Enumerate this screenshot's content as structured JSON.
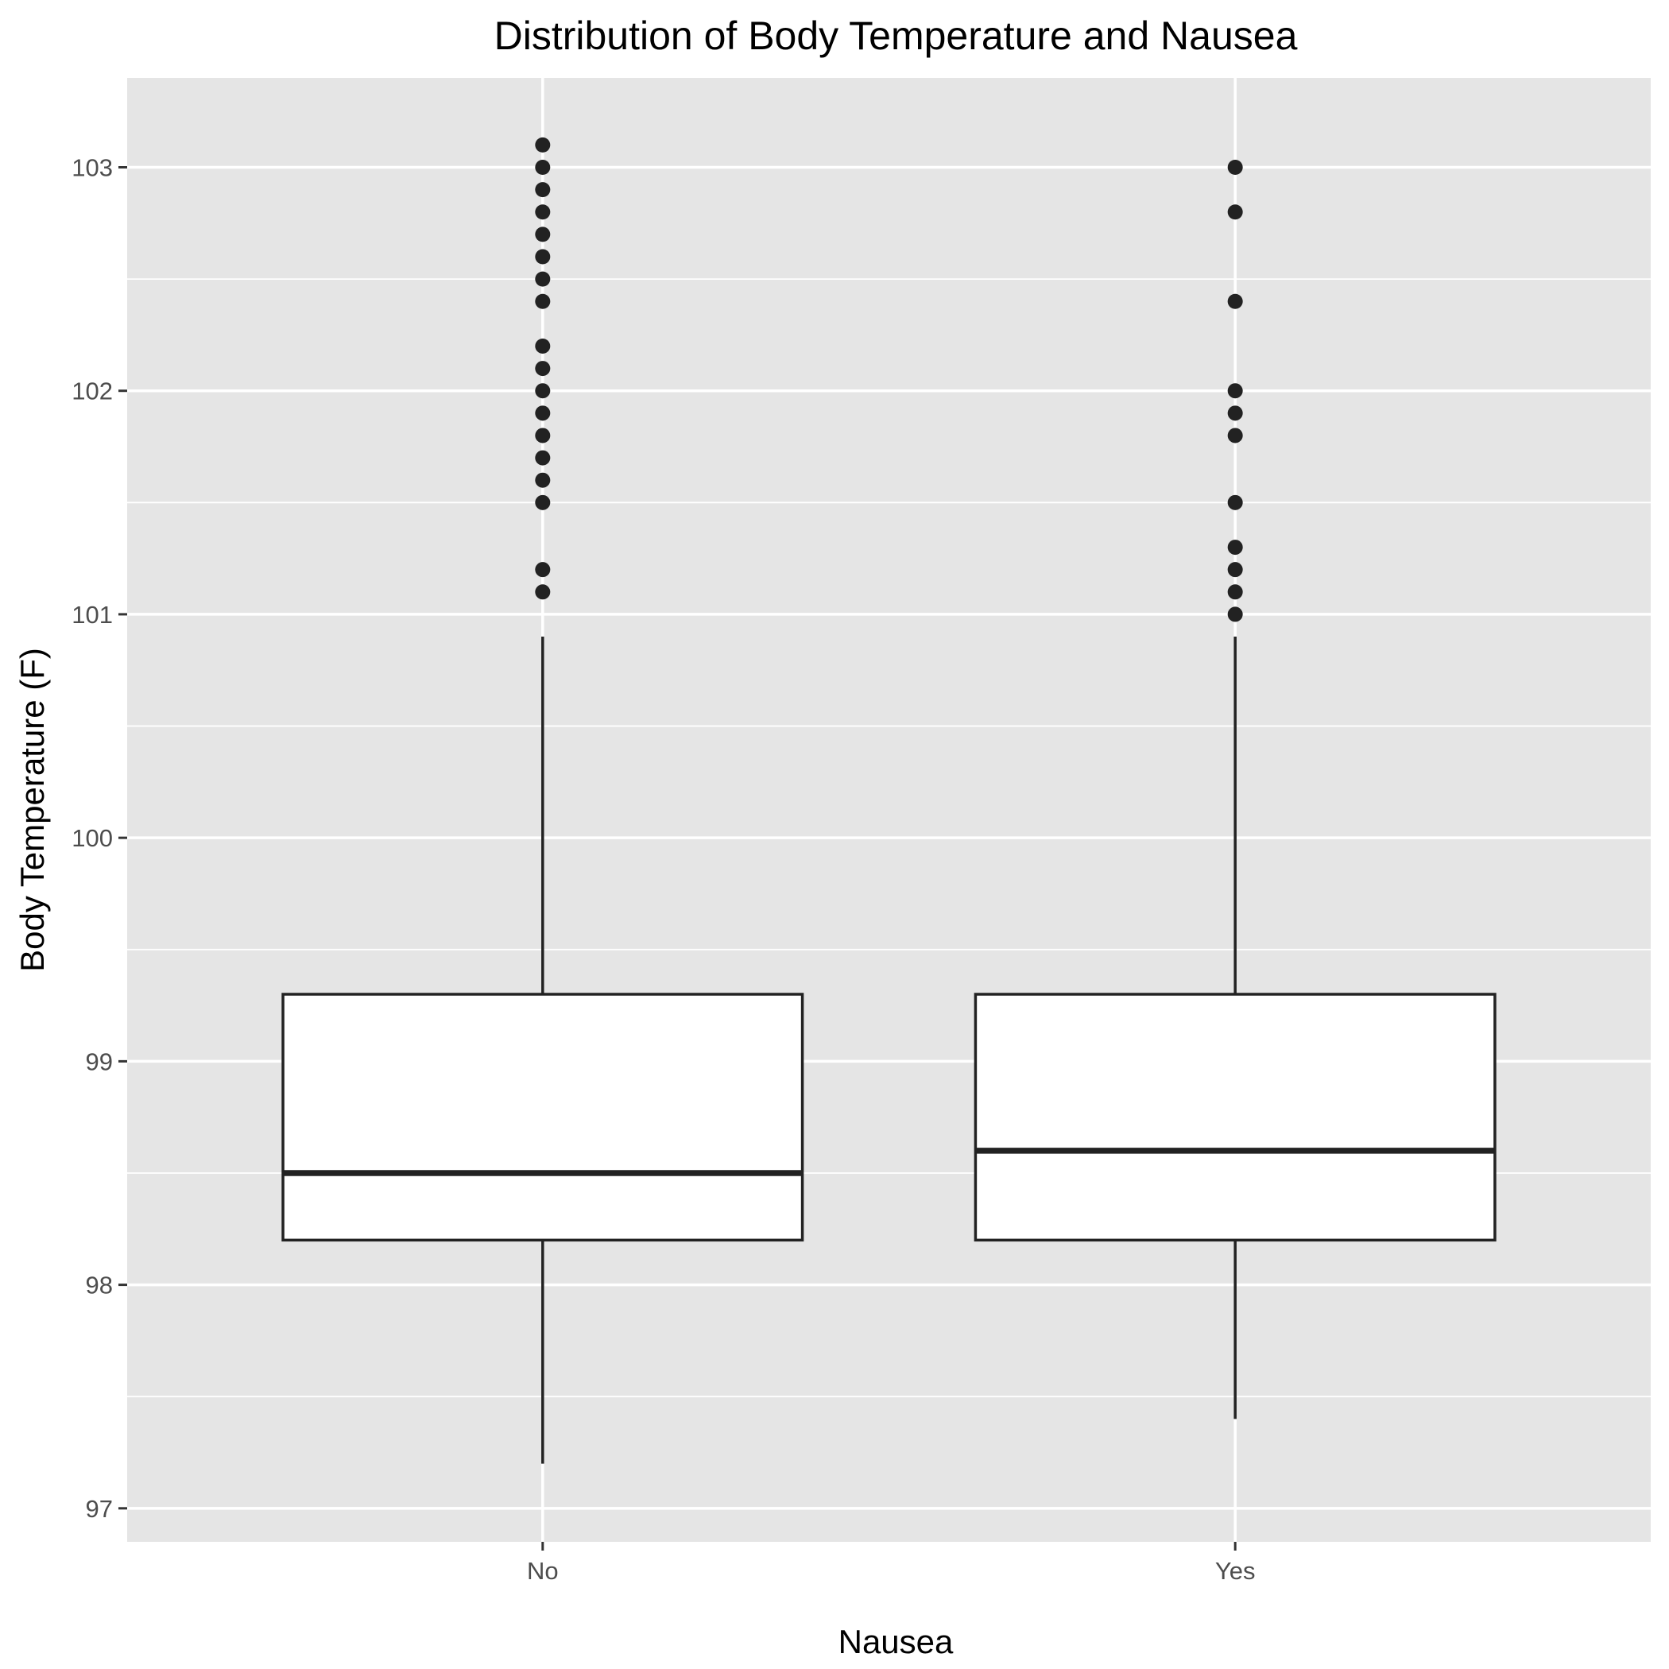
{
  "chart_data": {
    "type": "boxplot",
    "title": "Distribution of Body Temperature and Nausea",
    "xlabel": "Nausea",
    "ylabel": "Body Temperature (F)",
    "categories": [
      "No",
      "Yes"
    ],
    "ylim": [
      96.85,
      103.4
    ],
    "yticks": [
      97,
      98,
      99,
      100,
      101,
      102,
      103
    ],
    "ytick_labels": [
      "97",
      "98",
      "99",
      "100",
      "101",
      "102",
      "103"
    ],
    "grid": true,
    "colors": {
      "panel": "#e5e5e5",
      "grid": "#ffffff",
      "box_fill": "#ffffff",
      "stroke": "#222222"
    },
    "boxes": [
      {
        "name": "No",
        "whisker_low": 97.2,
        "q1": 98.2,
        "median": 98.5,
        "q3": 99.3,
        "whisker_high": 100.9,
        "outliers": [
          101.1,
          101.2,
          101.5,
          101.6,
          101.7,
          101.8,
          101.9,
          102.0,
          102.1,
          102.2,
          102.4,
          102.5,
          102.6,
          102.7,
          102.8,
          102.9,
          103.0,
          103.1
        ]
      },
      {
        "name": "Yes",
        "whisker_low": 97.4,
        "q1": 98.2,
        "median": 98.6,
        "q3": 99.3,
        "whisker_high": 100.9,
        "outliers": [
          101.0,
          101.1,
          101.2,
          101.3,
          101.5,
          101.8,
          101.9,
          102.0,
          102.4,
          102.8,
          103.0
        ]
      }
    ]
  }
}
